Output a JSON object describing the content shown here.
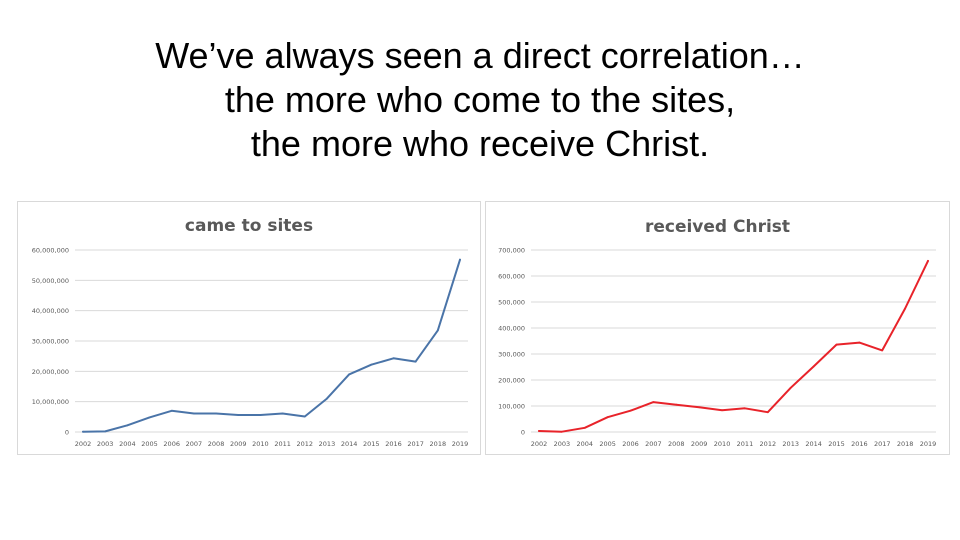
{
  "slide": {
    "title_lines": [
      "We’ve always seen a direct correlation…",
      "the more who come to the sites,",
      "the more who receive Christ."
    ]
  },
  "colors": {
    "line_left": "#4a74a8",
    "line_right": "#e8232a",
    "gridline": "#d9d9d9",
    "text_gray": "#595959"
  },
  "chart_data": [
    {
      "type": "line",
      "title": "came to sites",
      "xlabel": "",
      "ylabel": "",
      "categories": [
        "2002",
        "2003",
        "2004",
        "2005",
        "2006",
        "2007",
        "2008",
        "2009",
        "2010",
        "2011",
        "2012",
        "2013",
        "2014",
        "2015",
        "2016",
        "2017",
        "2018",
        "2019"
      ],
      "series": [
        {
          "values": [
            100000,
            200000,
            2200000,
            4800000,
            7000000,
            6100000,
            6100000,
            5600000,
            5600000,
            6100000,
            5100000,
            11000000,
            19000000,
            22200000,
            24300000,
            23200000,
            33500000,
            56800000
          ]
        }
      ],
      "ylim": [
        0,
        60000000
      ],
      "yticks": [
        0,
        10000000,
        20000000,
        30000000,
        40000000,
        50000000,
        60000000
      ],
      "ytick_labels": [
        "0",
        "10,000,000",
        "20,000,000",
        "30,000,000",
        "40,000,000",
        "50,000,000",
        "60,000,000"
      ],
      "grid": true,
      "legend": "none"
    },
    {
      "type": "line",
      "title": "received Christ",
      "xlabel": "",
      "ylabel": "",
      "categories": [
        "2002",
        "2003",
        "2004",
        "2005",
        "2006",
        "2007",
        "2008",
        "2009",
        "2010",
        "2011",
        "2012",
        "2013",
        "2014",
        "2015",
        "2016",
        "2017",
        "2018",
        "2019"
      ],
      "series": [
        {
          "values": [
            4000,
            1000,
            16000,
            57000,
            82000,
            115000,
            105000,
            95000,
            84000,
            91000,
            76000,
            170000,
            252000,
            336000,
            344000,
            314000,
            475000,
            658000
          ]
        }
      ],
      "ylim": [
        0,
        700000
      ],
      "yticks": [
        0,
        100000,
        200000,
        300000,
        400000,
        500000,
        600000,
        700000
      ],
      "ytick_labels": [
        "0",
        "100,000",
        "200,000",
        "300,000",
        "400,000",
        "500,000",
        "600,000",
        "700,000"
      ],
      "grid": true,
      "legend": "none"
    }
  ]
}
